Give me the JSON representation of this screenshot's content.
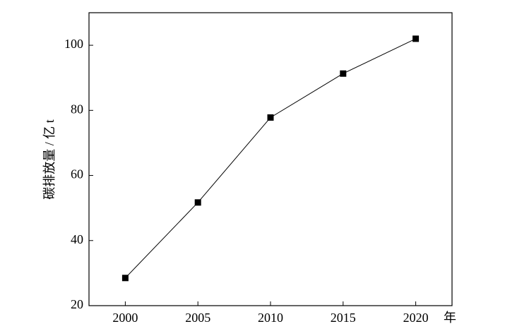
{
  "chart_data": {
    "type": "line",
    "x_label": "年",
    "y_label": "碳排放量 / 亿 t",
    "x": [
      2000,
      2005,
      2010,
      2015,
      2020
    ],
    "series": [
      {
        "color": "#000000",
        "values": [
          28.5,
          51.7,
          77.8,
          91.3,
          102
        ]
      }
    ],
    "xlim": [
      1997.5,
      2022.5
    ],
    "xticks": [
      2000,
      2005,
      2010,
      2015,
      2020
    ],
    "ylim": [
      20,
      110
    ],
    "yticks": [
      20,
      40,
      60,
      80,
      100
    ]
  }
}
